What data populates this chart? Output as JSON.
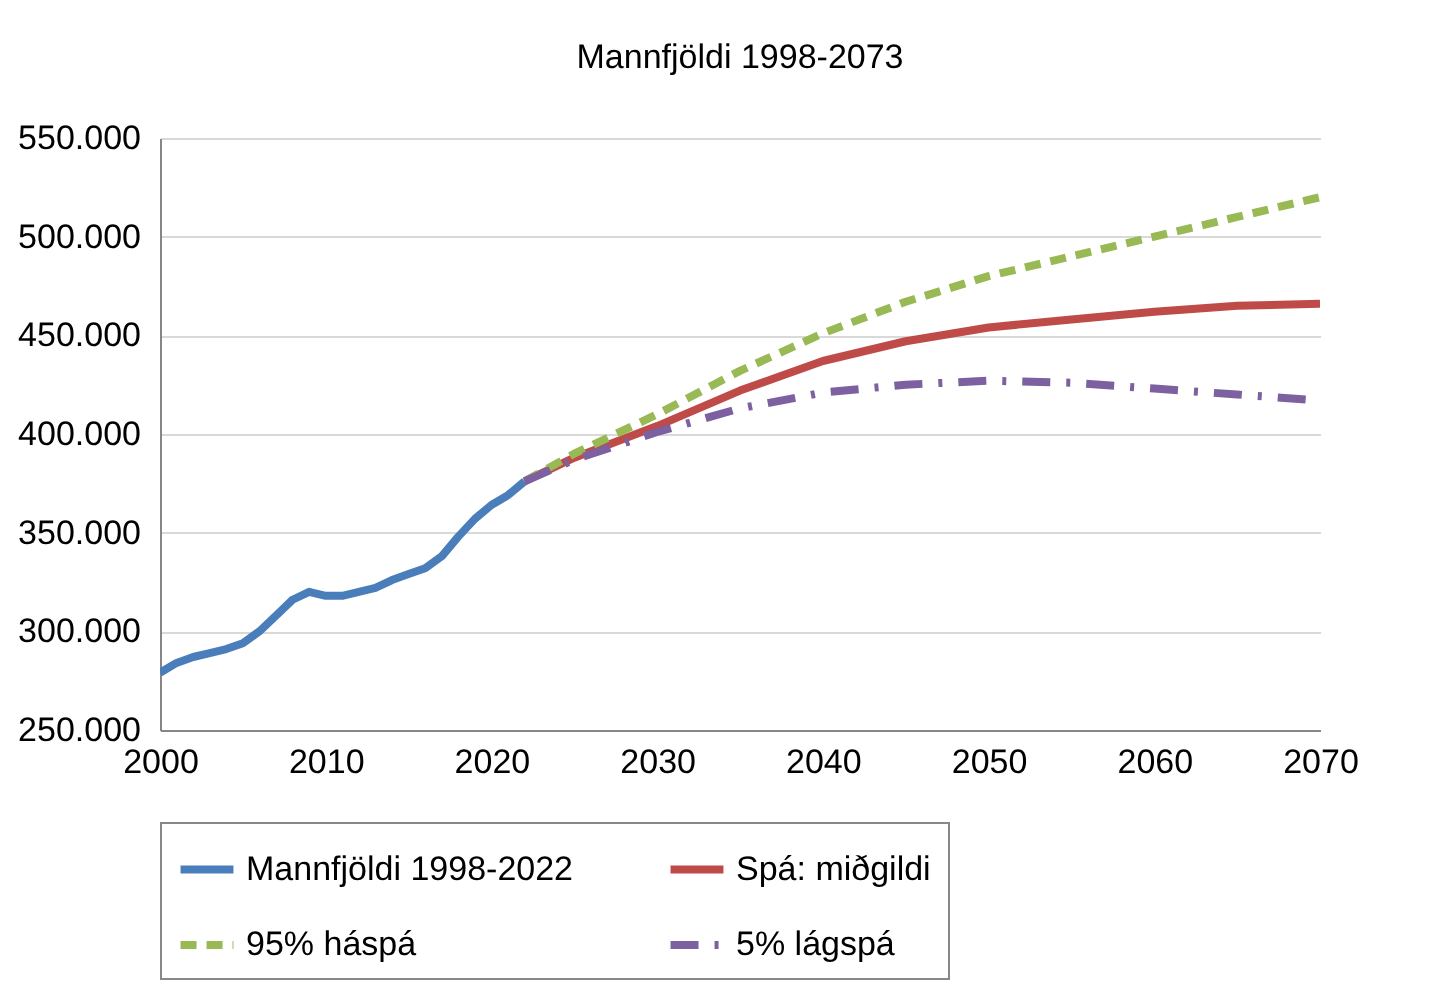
{
  "chart_data": {
    "type": "line",
    "title": "Mannfjöldi 1998-2073",
    "xlim": [
      2000,
      2070
    ],
    "xticks": [
      2000,
      2010,
      2020,
      2030,
      2040,
      2050,
      2060,
      2070
    ],
    "ylim": [
      250000,
      550000
    ],
    "yticks": [
      {
        "value": 250000,
        "label": "250.000"
      },
      {
        "value": 300000,
        "label": "300.000"
      },
      {
        "value": 350000,
        "label": "350.000"
      },
      {
        "value": 400000,
        "label": "400.000"
      },
      {
        "value": 450000,
        "label": "450.000"
      },
      {
        "value": 500000,
        "label": "500.000"
      },
      {
        "value": 550000,
        "label": "550.000"
      }
    ],
    "grid": "y",
    "legend": "bottom",
    "series": [
      {
        "name": "Mannfjöldi 1998-2022",
        "color": "#4a7ebb",
        "line_style": "solid",
        "x": [
          2000,
          2001,
          2002,
          2003,
          2004,
          2005,
          2006,
          2007,
          2008,
          2009,
          2010,
          2011,
          2012,
          2013,
          2014,
          2015,
          2016,
          2017,
          2018,
          2019,
          2020,
          2021,
          2022
        ],
        "values": [
          279000,
          284000,
          287000,
          289000,
          291000,
          294000,
          300000,
          308000,
          316000,
          320000,
          318000,
          318000,
          320000,
          322000,
          326000,
          329000,
          332000,
          338000,
          348000,
          357000,
          364000,
          369000,
          376000
        ]
      },
      {
        "name": "Spá: miðgildi",
        "color": "#be4b48",
        "line_style": "solid",
        "x": [
          2022,
          2025,
          2030,
          2035,
          2040,
          2045,
          2050,
          2055,
          2060,
          2065,
          2070
        ],
        "values": [
          376000,
          388000,
          404000,
          422000,
          437000,
          447000,
          454000,
          458000,
          462000,
          465000,
          466000
        ]
      },
      {
        "name": "95% háspá",
        "color": "#98b954",
        "line_style": "dashed",
        "x": [
          2022,
          2025,
          2030,
          2035,
          2040,
          2045,
          2050,
          2055,
          2060,
          2065,
          2070
        ],
        "values": [
          376000,
          390000,
          410000,
          432000,
          451000,
          467000,
          480000,
          490000,
          500000,
          510000,
          520000
        ]
      },
      {
        "name": "5% lágspá",
        "color": "#7d60a0",
        "line_style": "dashdot",
        "x": [
          2022,
          2025,
          2030,
          2035,
          2040,
          2045,
          2050,
          2055,
          2060,
          2065,
          2070
        ],
        "values": [
          376000,
          387000,
          401000,
          413000,
          421000,
          425000,
          427000,
          426000,
          423000,
          420000,
          417000
        ]
      }
    ]
  }
}
